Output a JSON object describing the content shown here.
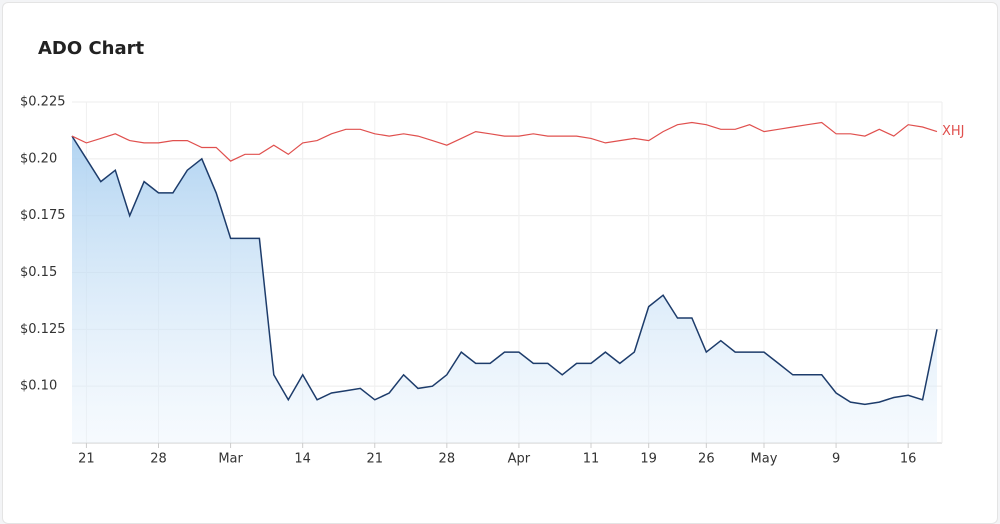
{
  "chart_data": {
    "type": "line",
    "title": "ADO Chart",
    "categories": [
      null,
      "21",
      null,
      null,
      null,
      null,
      "28",
      null,
      null,
      null,
      null,
      "Mar",
      null,
      null,
      null,
      null,
      "14",
      null,
      null,
      null,
      null,
      "21",
      null,
      null,
      null,
      null,
      "28",
      null,
      null,
      null,
      null,
      "Apr",
      null,
      null,
      null,
      null,
      "11",
      null,
      null,
      null,
      "19",
      null,
      null,
      null,
      "26",
      null,
      null,
      null,
      "May",
      null,
      null,
      null,
      null,
      "9",
      null,
      null,
      null,
      null,
      "16",
      null,
      null
    ],
    "series": [
      {
        "color": "#1d3c6b",
        "fill": true,
        "values": [
          0.21,
          0.2,
          0.19,
          0.195,
          0.175,
          0.19,
          0.185,
          0.185,
          0.195,
          0.2,
          0.185,
          0.165,
          0.165,
          0.165,
          0.105,
          0.094,
          0.105,
          0.094,
          0.097,
          0.098,
          0.099,
          0.094,
          0.097,
          0.105,
          0.099,
          0.1,
          0.105,
          0.115,
          0.11,
          0.11,
          0.115,
          0.115,
          0.11,
          0.11,
          0.105,
          0.11,
          0.11,
          0.115,
          0.11,
          0.115,
          0.135,
          0.14,
          0.13,
          0.13,
          0.115,
          0.12,
          0.115,
          0.115,
          0.115,
          0.11,
          0.105,
          0.105,
          0.105,
          0.097,
          0.093,
          0.092,
          0.093,
          0.095,
          0.096,
          0.094,
          0.125
        ]
      },
      {
        "name": "XHJ",
        "color": "#e0504e",
        "fill": false,
        "values": [
          0.21,
          0.207,
          0.209,
          0.211,
          0.208,
          0.207,
          0.207,
          0.208,
          0.208,
          0.205,
          0.205,
          0.199,
          0.202,
          0.202,
          0.206,
          0.202,
          0.207,
          0.208,
          0.211,
          0.213,
          0.213,
          0.211,
          0.21,
          0.211,
          0.21,
          0.208,
          0.206,
          0.209,
          0.212,
          0.211,
          0.21,
          0.21,
          0.211,
          0.21,
          0.21,
          0.21,
          0.209,
          0.207,
          0.208,
          0.209,
          0.208,
          0.212,
          0.215,
          0.216,
          0.215,
          0.213,
          0.213,
          0.215,
          0.212,
          0.213,
          0.214,
          0.215,
          0.216,
          0.211,
          0.211,
          0.21,
          0.213,
          0.21,
          0.215,
          0.214,
          0.212
        ]
      }
    ],
    "ylim": [
      0.075,
      0.225
    ],
    "yticks": [
      {
        "value": 0.1,
        "label": "$0.10"
      },
      {
        "value": 0.125,
        "label": "$0.125"
      },
      {
        "value": 0.15,
        "label": "$0.15"
      },
      {
        "value": 0.175,
        "label": "$0.175"
      },
      {
        "value": 0.2,
        "label": "$0.20"
      },
      {
        "value": 0.225,
        "label": "$0.225"
      }
    ],
    "grid": true
  }
}
